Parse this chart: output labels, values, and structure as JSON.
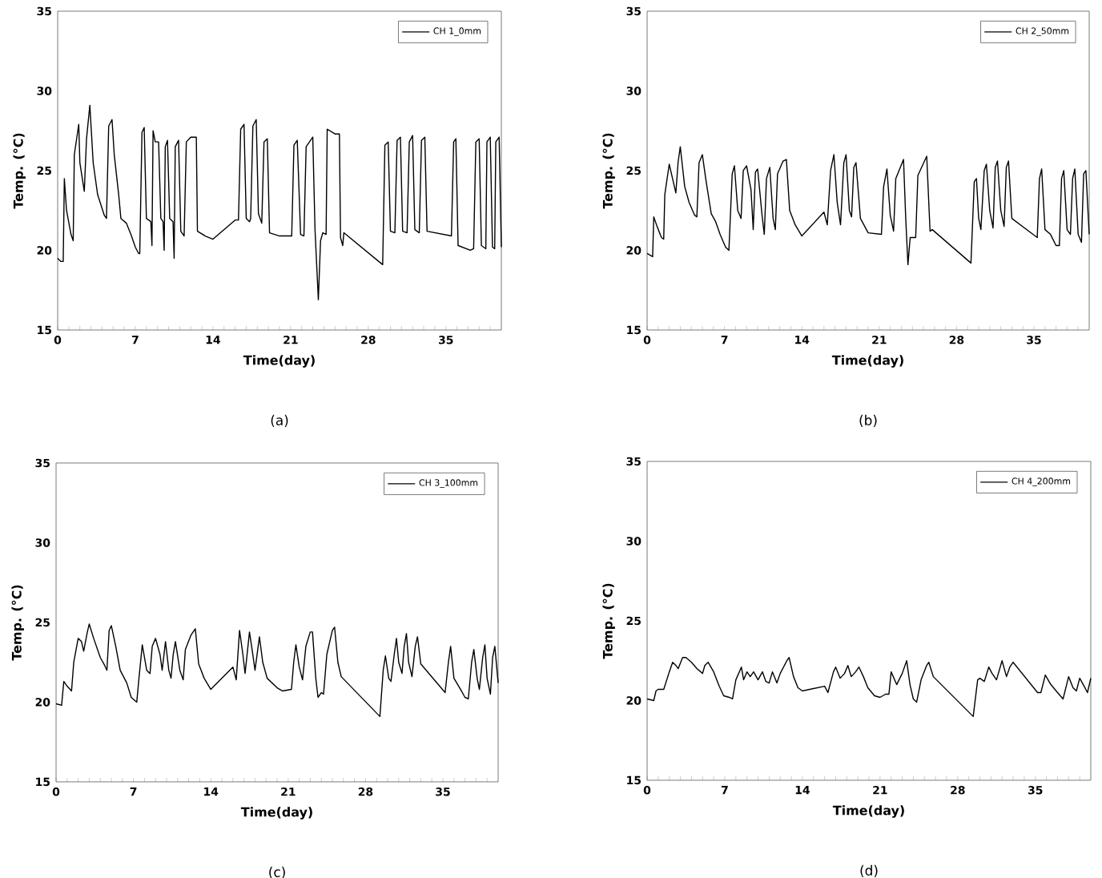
{
  "chart_data": [
    {
      "type": "line",
      "xlabel": "Time(day)",
      "ylabel": "Temp. (°C)",
      "xlim": [
        0,
        40
      ],
      "ylim": [
        15,
        35
      ],
      "yticks": [
        15,
        20,
        25,
        30,
        35
      ],
      "xticks": [
        0,
        {
          "value": 1,
          "label": null
        },
        {
          "value": 2,
          "label": null
        },
        {
          "value": 3,
          "label": null
        },
        {
          "value": 4,
          "label": null
        },
        {
          "value": 5,
          "label": null
        },
        {
          "value": 6,
          "label": null
        },
        7,
        {
          "value": 8,
          "label": null
        },
        {
          "value": 9,
          "label": null
        },
        {
          "value": 10,
          "label": null
        },
        {
          "value": 11,
          "label": null
        },
        {
          "value": 12,
          "label": null
        },
        {
          "value": 13,
          "label": null
        },
        14,
        {
          "value": 15,
          "label": null
        },
        {
          "value": 16,
          "label": null
        },
        {
          "value": 17,
          "label": null
        },
        {
          "value": 18,
          "label": null
        },
        {
          "value": 19,
          "label": null
        },
        {
          "value": 20,
          "label": null
        },
        21,
        {
          "value": 22,
          "label": null
        },
        {
          "value": 23,
          "label": null
        },
        {
          "value": 24,
          "label": null
        },
        {
          "value": 25,
          "label": null
        },
        {
          "value": 26,
          "label": null
        },
        {
          "value": 27,
          "label": null
        },
        28,
        {
          "value": 29,
          "label": null
        },
        {
          "value": 30,
          "label": null
        },
        {
          "value": 31,
          "label": null
        },
        {
          "value": 32,
          "label": null
        },
        {
          "value": 33,
          "label": null
        },
        {
          "value": 34,
          "label": null
        },
        35,
        {
          "value": 36,
          "label": null
        },
        {
          "value": 37,
          "label": null
        },
        {
          "value": 38,
          "label": null
        },
        {
          "value": 39,
          "label": null
        }
      ],
      "legend": "top right",
      "annotations": [
        "(a)"
      ],
      "x": [
        0,
        0.3,
        0.5,
        0.6,
        0.8,
        1.2,
        1.4,
        1.5,
        1.9,
        2.0,
        2.4,
        2.6,
        2.9,
        3.2,
        3.6,
        4.2,
        4.4,
        4.6,
        4.9,
        5.1,
        5.5,
        5.7,
        6.2,
        6.6,
        7.0,
        7.3,
        7.4,
        7.6,
        7.8,
        8.0,
        8.4,
        8.5,
        8.6,
        8.8,
        9.1,
        9.3,
        9.5,
        9.6,
        9.7,
        9.9,
        10.1,
        10.4,
        10.5,
        10.6,
        10.9,
        11.1,
        11.4,
        11.6,
        12.0,
        12.5,
        12.6,
        13.3,
        14.0,
        16.0,
        16.3,
        16.5,
        16.8,
        17.0,
        17.3,
        17.4,
        17.6,
        17.9,
        18.1,
        18.4,
        18.6,
        18.9,
        19.1,
        20.0,
        21.1,
        21.3,
        21.6,
        21.9,
        22.2,
        22.4,
        23.0,
        23.2,
        23.5,
        23.7,
        23.9,
        24.2,
        24.3,
        25.0,
        25.4,
        25.5,
        25.7,
        25.8,
        29.3,
        29.5,
        29.8,
        30.0,
        30.4,
        30.6,
        30.9,
        31.1,
        31.5,
        31.7,
        32.0,
        32.2,
        32.6,
        32.8,
        33.1,
        33.3,
        35.5,
        35.7,
        35.9,
        36.1,
        37.2,
        37.5,
        37.7,
        38.0,
        38.2,
        38.6,
        38.7,
        39.0,
        39.2,
        39.4,
        39.5,
        39.8,
        40
      ],
      "series": [
        {
          "name": "CH 1_0mm",
          "color": "#000000",
          "values": [
            19.5,
            19.3,
            19.3,
            24.5,
            22.5,
            21,
            20.6,
            26,
            27.9,
            25.5,
            23.7,
            27,
            29.1,
            25.5,
            23.5,
            22.2,
            22.0,
            27.8,
            28.2,
            26,
            23.5,
            22,
            21.7,
            21,
            20.2,
            19.8,
            19.8,
            27.4,
            27.7,
            22,
            21.8,
            20.3,
            27.5,
            26.8,
            26.8,
            22,
            21.8,
            20,
            26.5,
            26.9,
            22,
            21.8,
            19.5,
            26.5,
            26.9,
            21.2,
            20.9,
            26.8,
            27.1,
            27.1,
            21.2,
            20.9,
            20.7,
            21.9,
            21.9,
            27.6,
            27.9,
            22,
            21.8,
            22,
            27.8,
            28.2,
            22.3,
            21.7,
            26.8,
            27,
            21.1,
            20.9,
            20.9,
            26.6,
            26.9,
            21,
            20.9,
            26.5,
            27.1,
            21.3,
            16.9,
            20.6,
            21.1,
            21,
            27.6,
            27.3,
            27.3,
            20.8,
            20.3,
            21.1,
            19.1,
            26.6,
            26.8,
            21.2,
            21.1,
            26.9,
            27.1,
            21.2,
            21.1,
            26.8,
            27.2,
            21.3,
            21.1,
            26.9,
            27.1,
            21.2,
            20.9,
            26.8,
            27,
            20.3,
            20,
            20.1,
            26.8,
            27,
            20.3,
            20.1,
            26.8,
            27.1,
            20.2,
            20.1,
            26.8,
            27.1,
            20.2
          ]
        }
      ]
    },
    {
      "type": "line",
      "xlabel": "Time(day)",
      "ylabel": "Temp. (°C)",
      "xlim": [
        0,
        40
      ],
      "ylim": [
        15,
        35
      ],
      "yticks": [
        15,
        20,
        25,
        30,
        35
      ],
      "xticks": [
        0,
        {
          "value": 1,
          "label": null
        },
        {
          "value": 2,
          "label": null
        },
        {
          "value": 3,
          "label": null
        },
        {
          "value": 4,
          "label": null
        },
        {
          "value": 5,
          "label": null
        },
        {
          "value": 6,
          "label": null
        },
        7,
        {
          "value": 8,
          "label": null
        },
        {
          "value": 9,
          "label": null
        },
        {
          "value": 10,
          "label": null
        },
        {
          "value": 11,
          "label": null
        },
        {
          "value": 12,
          "label": null
        },
        {
          "value": 13,
          "label": null
        },
        14,
        {
          "value": 15,
          "label": null
        },
        {
          "value": 16,
          "label": null
        },
        {
          "value": 17,
          "label": null
        },
        {
          "value": 18,
          "label": null
        },
        {
          "value": 19,
          "label": null
        },
        {
          "value": 20,
          "label": null
        },
        21,
        {
          "value": 22,
          "label": null
        },
        {
          "value": 23,
          "label": null
        },
        {
          "value": 24,
          "label": null
        },
        {
          "value": 25,
          "label": null
        },
        {
          "value": 26,
          "label": null
        },
        {
          "value": 27,
          "label": null
        },
        28,
        {
          "value": 29,
          "label": null
        },
        {
          "value": 30,
          "label": null
        },
        {
          "value": 31,
          "label": null
        },
        {
          "value": 32,
          "label": null
        },
        {
          "value": 33,
          "label": null
        },
        {
          "value": 34,
          "label": null
        },
        35,
        {
          "value": 36,
          "label": null
        },
        {
          "value": 37,
          "label": null
        },
        {
          "value": 38,
          "label": null
        },
        {
          "value": 39,
          "label": null
        }
      ],
      "legend": "top right",
      "annotations": [
        "(b)"
      ],
      "x": [
        0,
        0.5,
        0.6,
        0.9,
        1.3,
        1.5,
        1.6,
        2.0,
        2.3,
        2.6,
        2.8,
        3.0,
        3.4,
        3.8,
        4.3,
        4.5,
        4.7,
        5.0,
        5.3,
        5.8,
        6.2,
        6.6,
        7.1,
        7.4,
        7.7,
        7.9,
        8.2,
        8.5,
        8.7,
        9.0,
        9.4,
        9.6,
        9.8,
        10.0,
        10.4,
        10.6,
        10.8,
        11.1,
        11.4,
        11.6,
        11.8,
        12.3,
        12.6,
        12.9,
        13.4,
        14.0,
        16.0,
        16.3,
        16.6,
        16.9,
        17.2,
        17.5,
        17.8,
        18.0,
        18.3,
        18.5,
        18.7,
        18.9,
        19.3,
        20.0,
        21.2,
        21.4,
        21.7,
        22.0,
        22.3,
        22.5,
        23.2,
        23.4,
        23.6,
        23.8,
        24.3,
        24.5,
        25.3,
        25.6,
        25.8,
        29.3,
        29.6,
        29.8,
        30.0,
        30.2,
        30.5,
        30.7,
        31.0,
        31.3,
        31.5,
        31.7,
        32.0,
        32.3,
        32.5,
        32.7,
        33.0,
        35.3,
        35.5,
        35.7,
        36.0,
        36.5,
        37.0,
        37.3,
        37.5,
        37.7,
        38.0,
        38.3,
        38.5,
        38.7,
        39.0,
        39.3,
        39.5,
        39.7,
        40
      ],
      "series": [
        {
          "name": "CH 2_50mm",
          "color": "#000000",
          "values": [
            19.8,
            19.6,
            22.1,
            21.5,
            20.8,
            20.7,
            23.5,
            25.4,
            24.5,
            23.6,
            25.5,
            26.5,
            24,
            23,
            22.2,
            22.1,
            25.5,
            26,
            24.5,
            22.3,
            21.8,
            21,
            20.2,
            20,
            24.8,
            25.3,
            22.5,
            22,
            25,
            25.3,
            23.8,
            21.3,
            24.9,
            25.1,
            22.2,
            21,
            24.5,
            25.2,
            22,
            21.3,
            24.8,
            25.6,
            25.7,
            22.5,
            21.6,
            20.9,
            22.4,
            21.6,
            25,
            26,
            23,
            21.6,
            25.5,
            26,
            22.5,
            22.1,
            25.2,
            25.5,
            22,
            21.1,
            21,
            24,
            25.1,
            22.2,
            21.2,
            24.5,
            25.7,
            22,
            19.1,
            20.8,
            20.8,
            24.7,
            25.9,
            21.2,
            21.3,
            19.2,
            24.3,
            24.5,
            22,
            21.3,
            25,
            25.4,
            22.5,
            21.4,
            25.2,
            25.6,
            22.5,
            21.5,
            25.2,
            25.6,
            22,
            20.8,
            24.5,
            25.1,
            21.3,
            21,
            20.3,
            20.3,
            24.5,
            25,
            21.3,
            21,
            24.5,
            25.1,
            21,
            20.5,
            24.8,
            25,
            21
          ]
        }
      ]
    },
    {
      "type": "line",
      "xlabel": "Time(day)",
      "ylabel": "Temp. (°C)",
      "xlim": [
        0,
        40
      ],
      "ylim": [
        15,
        35
      ],
      "yticks": [
        15,
        20,
        25,
        30,
        35
      ],
      "xticks": [
        0,
        {
          "value": 1,
          "label": null
        },
        {
          "value": 2,
          "label": null
        },
        {
          "value": 3,
          "label": null
        },
        {
          "value": 4,
          "label": null
        },
        {
          "value": 5,
          "label": null
        },
        {
          "value": 6,
          "label": null
        },
        7,
        {
          "value": 8,
          "label": null
        },
        {
          "value": 9,
          "label": null
        },
        {
          "value": 10,
          "label": null
        },
        {
          "value": 11,
          "label": null
        },
        {
          "value": 12,
          "label": null
        },
        {
          "value": 13,
          "label": null
        },
        14,
        {
          "value": 15,
          "label": null
        },
        {
          "value": 16,
          "label": null
        },
        {
          "value": 17,
          "label": null
        },
        {
          "value": 18,
          "label": null
        },
        {
          "value": 19,
          "label": null
        },
        {
          "value": 20,
          "label": null
        },
        21,
        {
          "value": 22,
          "label": null
        },
        {
          "value": 23,
          "label": null
        },
        {
          "value": 24,
          "label": null
        },
        {
          "value": 25,
          "label": null
        },
        {
          "value": 26,
          "label": null
        },
        {
          "value": 27,
          "label": null
        },
        28,
        {
          "value": 29,
          "label": null
        },
        {
          "value": 30,
          "label": null
        },
        {
          "value": 31,
          "label": null
        },
        {
          "value": 32,
          "label": null
        },
        {
          "value": 33,
          "label": null
        },
        {
          "value": 34,
          "label": null
        },
        35,
        {
          "value": 36,
          "label": null
        },
        {
          "value": 37,
          "label": null
        },
        {
          "value": 38,
          "label": null
        },
        {
          "value": 39,
          "label": null
        }
      ],
      "legend": "top right",
      "annotations": [
        "(c)"
      ],
      "x": [
        0,
        0.5,
        0.7,
        1.0,
        1.4,
        1.6,
        2.0,
        2.3,
        2.5,
        2.8,
        3.0,
        3.4,
        4.0,
        4.4,
        4.6,
        4.8,
        5.0,
        5.4,
        5.8,
        6.4,
        6.8,
        7.3,
        7.5,
        7.8,
        8.2,
        8.5,
        8.7,
        9.0,
        9.4,
        9.6,
        9.9,
        10.2,
        10.4,
        10.6,
        10.8,
        11.2,
        11.5,
        11.7,
        12.2,
        12.6,
        12.9,
        13.4,
        14.0,
        16.0,
        16.3,
        16.6,
        16.9,
        17.1,
        17.5,
        17.8,
        18.0,
        18.4,
        18.7,
        19.1,
        20.0,
        20.5,
        21.3,
        21.5,
        21.7,
        22.0,
        22.3,
        22.6,
        23.0,
        23.2,
        23.5,
        23.7,
        24.0,
        24.2,
        24.5,
        25.0,
        25.2,
        25.5,
        25.8,
        29.3,
        29.6,
        29.8,
        30.1,
        30.3,
        30.6,
        30.8,
        31.0,
        31.3,
        31.5,
        31.7,
        31.9,
        32.2,
        32.5,
        32.7,
        33.0,
        35.2,
        35.5,
        35.7,
        36.0,
        36.6,
        37.0,
        37.3,
        37.6,
        37.8,
        38.1,
        38.3,
        38.6,
        38.8,
        39.0,
        39.3,
        39.5,
        39.7,
        40
      ],
      "series": [
        {
          "name": "CH 3_100mm",
          "color": "#000000",
          "values": [
            19.9,
            19.8,
            21.3,
            21,
            20.7,
            22.5,
            24,
            23.8,
            23.2,
            24.3,
            24.9,
            24,
            22.8,
            22.3,
            22,
            24.5,
            24.8,
            23.5,
            22,
            21.2,
            20.3,
            20,
            21.5,
            23.6,
            22,
            21.8,
            23.5,
            24,
            23,
            22,
            23.8,
            22,
            21.5,
            23,
            23.8,
            22,
            21.4,
            23.3,
            24.2,
            24.6,
            22.4,
            21.5,
            20.8,
            22.2,
            21.4,
            24.5,
            23,
            21.8,
            24.4,
            23,
            22,
            24.1,
            22.5,
            21.5,
            20.9,
            20.7,
            20.8,
            22.5,
            23.6,
            22.2,
            21.4,
            23.5,
            24.4,
            24.4,
            21.5,
            20.3,
            20.6,
            20.5,
            23,
            24.5,
            24.7,
            22.5,
            21.6,
            19.1,
            22,
            22.9,
            21.5,
            21.3,
            23,
            24,
            22.5,
            21.8,
            23.5,
            24.3,
            22.5,
            21.6,
            23.5,
            24.1,
            22.4,
            20.6,
            22.5,
            23.5,
            21.5,
            20.8,
            20.3,
            20.2,
            22.5,
            23.3,
            21.5,
            20.8,
            22.8,
            23.6,
            21.5,
            20.5,
            22.8,
            23.5,
            21.2
          ]
        }
      ]
    },
    {
      "type": "line",
      "xlabel": "Time(day)",
      "ylabel": "Temp. (°C)",
      "xlim": [
        0,
        40
      ],
      "ylim": [
        15,
        35
      ],
      "yticks": [
        15,
        20,
        25,
        30,
        35
      ],
      "xticks": [
        0,
        {
          "value": 1,
          "label": null
        },
        {
          "value": 2,
          "label": null
        },
        {
          "value": 3,
          "label": null
        },
        {
          "value": 4,
          "label": null
        },
        {
          "value": 5,
          "label": null
        },
        {
          "value": 6,
          "label": null
        },
        7,
        {
          "value": 8,
          "label": null
        },
        {
          "value": 9,
          "label": null
        },
        {
          "value": 10,
          "label": null
        },
        {
          "value": 11,
          "label": null
        },
        {
          "value": 12,
          "label": null
        },
        {
          "value": 13,
          "label": null
        },
        14,
        {
          "value": 15,
          "label": null
        },
        {
          "value": 16,
          "label": null
        },
        {
          "value": 17,
          "label": null
        },
        {
          "value": 18,
          "label": null
        },
        {
          "value": 19,
          "label": null
        },
        {
          "value": 20,
          "label": null
        },
        21,
        {
          "value": 22,
          "label": null
        },
        {
          "value": 23,
          "label": null
        },
        {
          "value": 24,
          "label": null
        },
        {
          "value": 25,
          "label": null
        },
        {
          "value": 26,
          "label": null
        },
        {
          "value": 27,
          "label": null
        },
        28,
        {
          "value": 29,
          "label": null
        },
        {
          "value": 30,
          "label": null
        },
        {
          "value": 31,
          "label": null
        },
        {
          "value": 32,
          "label": null
        },
        {
          "value": 33,
          "label": null
        },
        {
          "value": 34,
          "label": null
        },
        35,
        {
          "value": 36,
          "label": null
        },
        {
          "value": 37,
          "label": null
        },
        {
          "value": 38,
          "label": null
        },
        {
          "value": 39,
          "label": null
        }
      ],
      "legend": "top right",
      "annotations": [
        "(d)"
      ],
      "x": [
        0,
        0.6,
        0.8,
        1.0,
        1.5,
        2.0,
        2.3,
        2.6,
        2.8,
        3.2,
        3.5,
        4.0,
        4.5,
        5.0,
        5.2,
        5.5,
        6.0,
        6.5,
        6.9,
        7.4,
        7.7,
        8.0,
        8.5,
        8.7,
        9.0,
        9.3,
        9.6,
        10.0,
        10.4,
        10.7,
        11.0,
        11.3,
        11.7,
        12.0,
        12.6,
        12.8,
        13.2,
        13.6,
        14.0,
        16.0,
        16.3,
        16.8,
        17.0,
        17.4,
        17.8,
        18.1,
        18.4,
        18.8,
        19.1,
        19.5,
        19.9,
        20.5,
        21.0,
        21.5,
        21.8,
        22.0,
        22.5,
        23.0,
        23.4,
        23.7,
        24.0,
        24.3,
        24.7,
        25.2,
        25.4,
        25.8,
        29.4,
        29.8,
        30.0,
        30.4,
        30.8,
        31.1,
        31.5,
        32.0,
        32.4,
        32.7,
        33.0,
        35.2,
        35.5,
        35.9,
        36.4,
        37.0,
        37.5,
        38.0,
        38.4,
        38.7,
        39.0,
        39.4,
        39.7,
        40
      ],
      "series": [
        {
          "name": "CH 4_200mm",
          "color": "#000000",
          "values": [
            20.1,
            20.0,
            20.6,
            20.7,
            20.7,
            21.8,
            22.4,
            22.2,
            22,
            22.7,
            22.7,
            22.4,
            22,
            21.7,
            22.2,
            22.4,
            21.8,
            20.9,
            20.3,
            20.2,
            20.1,
            21.3,
            22.1,
            21.3,
            21.8,
            21.5,
            21.8,
            21.3,
            21.8,
            21.2,
            21.1,
            21.8,
            21.1,
            21.7,
            22.5,
            22.7,
            21.5,
            20.8,
            20.6,
            20.9,
            20.5,
            21.8,
            22.1,
            21.4,
            21.7,
            22.2,
            21.5,
            21.8,
            22.1,
            21.5,
            20.8,
            20.3,
            20.2,
            20.4,
            20.4,
            21.8,
            21.0,
            21.7,
            22.5,
            21.0,
            20.1,
            19.9,
            21.3,
            22.2,
            22.4,
            21.5,
            19.0,
            21.3,
            21.4,
            21.2,
            22.1,
            21.7,
            21.3,
            22.5,
            21.5,
            22.1,
            22.4,
            20.5,
            20.5,
            21.6,
            21,
            20.5,
            20.1,
            21.5,
            20.8,
            20.6,
            21.4,
            20.9,
            20.5,
            21.4
          ]
        }
      ]
    }
  ]
}
